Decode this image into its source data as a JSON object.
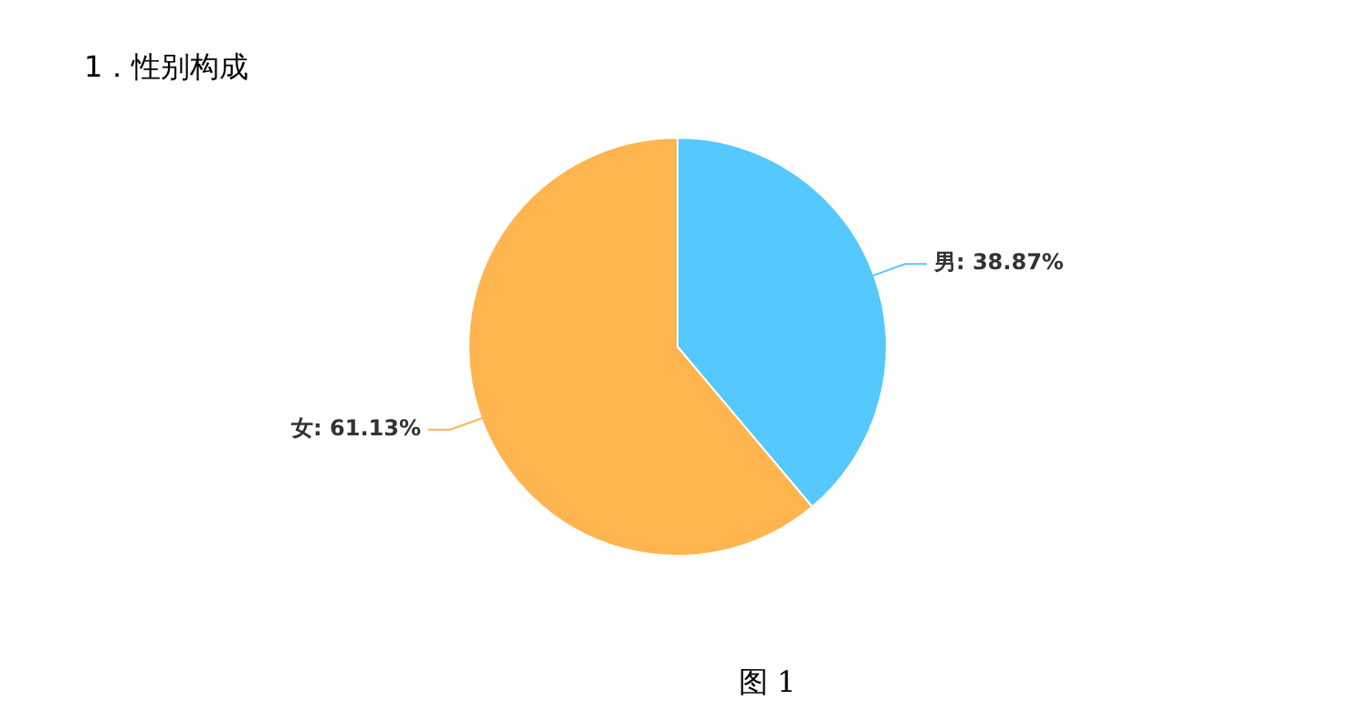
{
  "chart_data": {
    "type": "pie",
    "title": "1．性别构成",
    "categories": [
      "男",
      "女"
    ],
    "values": [
      38.87,
      61.13
    ],
    "colors": [
      "#55c8fd",
      "#ffb54f"
    ],
    "value_labels": [
      "38.87%",
      "61.13%"
    ],
    "legend": false,
    "annotations": [
      "图 1"
    ]
  }
}
